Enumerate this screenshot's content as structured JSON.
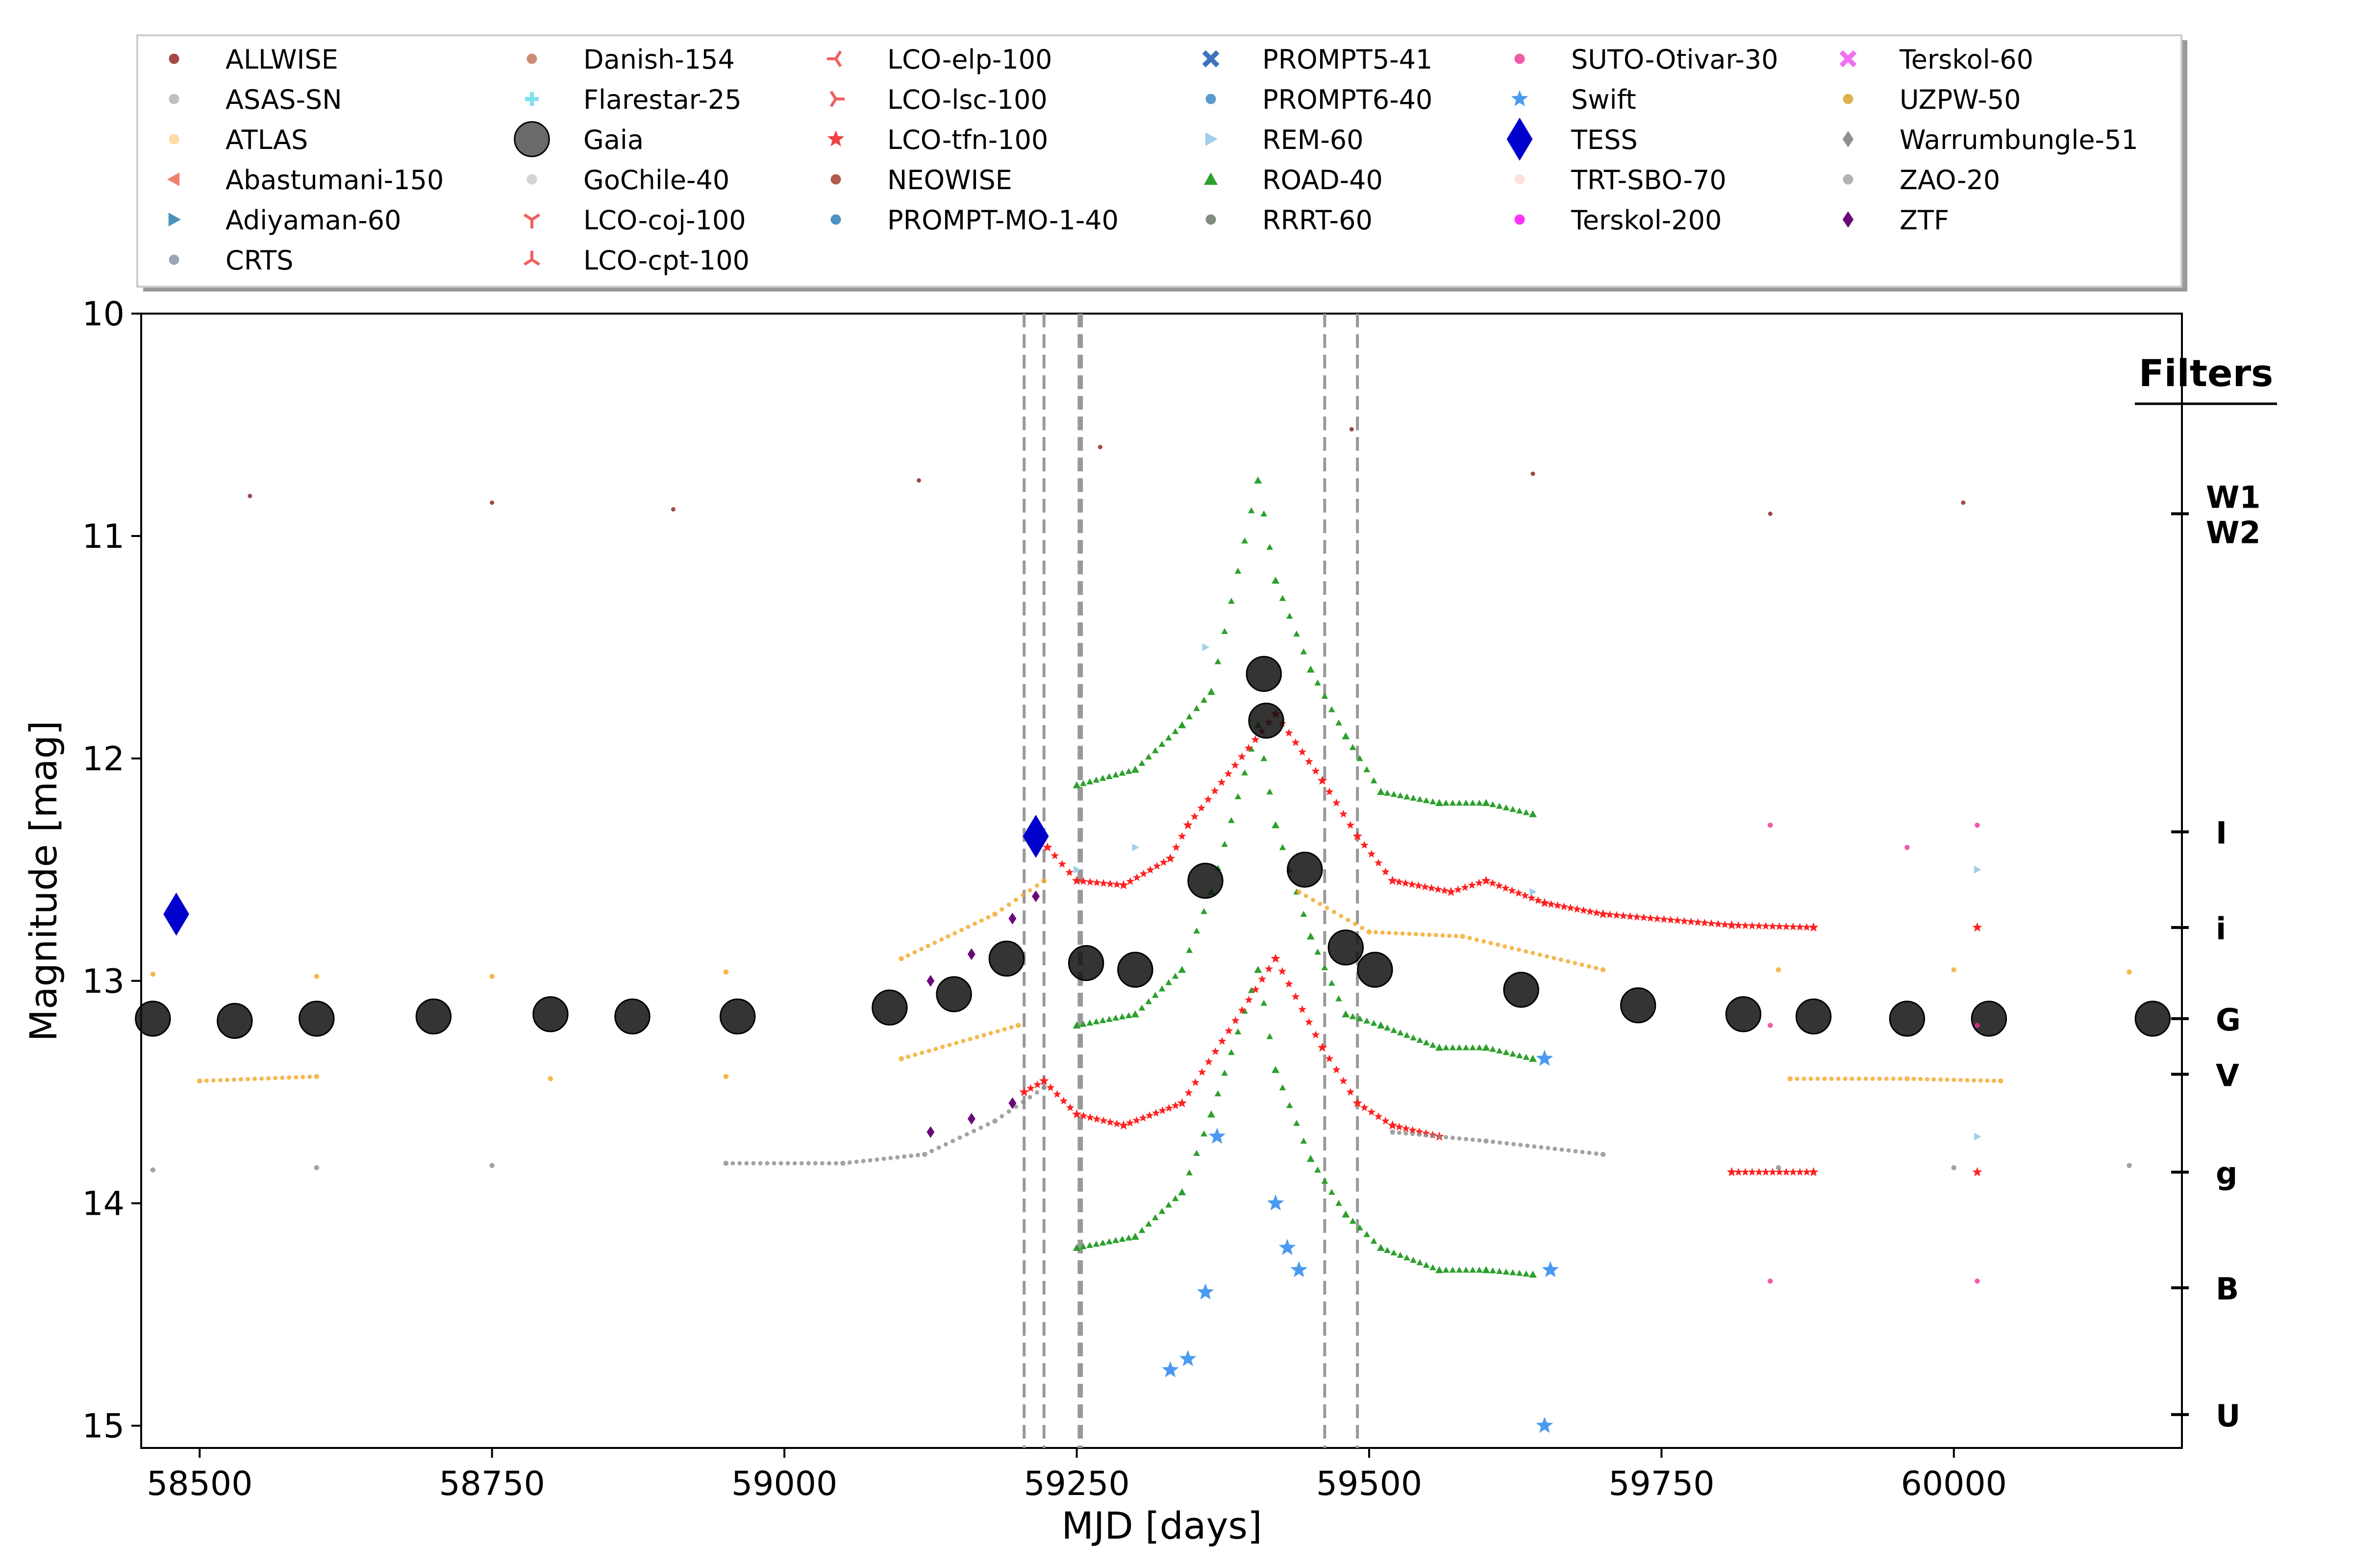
{
  "chart_data": {
    "type": "scatter",
    "title": "",
    "xlabel": "MJD [days]",
    "ylabel": "Magnitude [mag]",
    "xlim": [
      58450,
      60195
    ],
    "ylim": [
      15.1,
      10.0
    ],
    "y_inverted": true,
    "grid": false,
    "legend_position": "top",
    "x_ticks": [
      {
        "v": 58500,
        "label": "58500"
      },
      {
        "v": 58750,
        "label": "58750"
      },
      {
        "v": 59000,
        "label": "59000"
      },
      {
        "v": 59250,
        "label": "59250"
      },
      {
        "v": 59500,
        "label": "59500"
      },
      {
        "v": 59750,
        "label": "59750"
      },
      {
        "v": 60000,
        "label": "60000"
      }
    ],
    "y_ticks": [
      {
        "v": 10,
        "label": "10"
      },
      {
        "v": 11,
        "label": "11"
      },
      {
        "v": 12,
        "label": "12"
      },
      {
        "v": 13,
        "label": "13"
      },
      {
        "v": 14,
        "label": "14"
      },
      {
        "v": 15,
        "label": "15"
      }
    ],
    "vertical_lines": [
      59205,
      59222,
      59252,
      59254,
      59462,
      59490
    ],
    "filters_title": "Filters",
    "filters": [
      {
        "name": "W1",
        "mag": 10.9
      },
      {
        "name": "W2",
        "mag": 10.9
      },
      {
        "name": "I",
        "mag": 12.33
      },
      {
        "name": "i",
        "mag": 12.76
      },
      {
        "name": "G",
        "mag": 13.17
      },
      {
        "name": "V",
        "mag": 13.42
      },
      {
        "name": "g",
        "mag": 13.86
      },
      {
        "name": "B",
        "mag": 14.38
      },
      {
        "name": "U",
        "mag": 14.95
      }
    ],
    "legend": [
      {
        "name": "ALLWISE",
        "color": "#8b1a1a",
        "marker": "circle"
      },
      {
        "name": "ASAS-SN",
        "color": "#b0b0b0",
        "marker": "circle"
      },
      {
        "name": "ATLAS",
        "color": "#ffd090",
        "marker": "circle"
      },
      {
        "name": "Abastumani-150",
        "color": "#f08070",
        "marker": "tri-left"
      },
      {
        "name": "Adiyaman-60",
        "color": "#4a90b8",
        "marker": "tri-right"
      },
      {
        "name": "CRTS",
        "color": "#8090a0",
        "marker": "circle"
      },
      {
        "name": "Danish-154",
        "color": "#c07050",
        "marker": "circle"
      },
      {
        "name": "Flarestar-25",
        "color": "#80e0f0",
        "marker": "plus"
      },
      {
        "name": "Gaia",
        "color": "#505050",
        "marker": "circle-large"
      },
      {
        "name": "GoChile-40",
        "color": "#c8c8c8",
        "marker": "circle"
      },
      {
        "name": "LCO-coj-100",
        "color": "#f06060",
        "marker": "y-down"
      },
      {
        "name": "LCO-cpt-100",
        "color": "#f06060",
        "marker": "y-up"
      },
      {
        "name": "LCO-elp-100",
        "color": "#f06060",
        "marker": "y-left"
      },
      {
        "name": "LCO-lsc-100",
        "color": "#f06060",
        "marker": "y-right"
      },
      {
        "name": "LCO-tfn-100",
        "color": "#f04040",
        "marker": "star"
      },
      {
        "name": "NEOWISE",
        "color": "#a03020",
        "marker": "circle"
      },
      {
        "name": "PROMPT-MO-1-40",
        "color": "#1f77b4",
        "marker": "circle"
      },
      {
        "name": "PROMPT5-41",
        "color": "#4070c0",
        "marker": "x"
      },
      {
        "name": "PROMPT6-40",
        "color": "#3080c0",
        "marker": "circle"
      },
      {
        "name": "REM-60",
        "color": "#a0d0e8",
        "marker": "tri-right"
      },
      {
        "name": "ROAD-40",
        "color": "#2ca02c",
        "marker": "tri-up"
      },
      {
        "name": "RRRT-60",
        "color": "#607060",
        "marker": "circle"
      },
      {
        "name": "SUTO-Otivar-30",
        "color": "#f03090",
        "marker": "circle"
      },
      {
        "name": "Swift",
        "color": "#4a9af0",
        "marker": "star"
      },
      {
        "name": "TESS",
        "color": "#0000cc",
        "marker": "diamond-large"
      },
      {
        "name": "TRT-SBO-70",
        "color": "#ffd8d8",
        "marker": "circle"
      },
      {
        "name": "Terskol-200",
        "color": "#ff00ff",
        "marker": "circle"
      },
      {
        "name": "Terskol-60",
        "color": "#f070f0",
        "marker": "x"
      },
      {
        "name": "UZPW-50",
        "color": "#d4a020",
        "marker": "circle"
      },
      {
        "name": "Warrumbungle-51",
        "color": "#909090",
        "marker": "diamond"
      },
      {
        "name": "ZAO-20",
        "color": "#a0a0a0",
        "marker": "circle"
      },
      {
        "name": "ZTF",
        "color": "#6a0a7a",
        "marker": "diamond"
      }
    ],
    "series": [
      {
        "name": "ALLWISE/NEOWISE (W1,W2)",
        "color": "#8b1a1a",
        "points": [
          [
            58543,
            10.82
          ],
          [
            58750,
            10.85
          ],
          [
            58905,
            10.88
          ],
          [
            59115,
            10.75
          ],
          [
            59270,
            10.6
          ],
          [
            59485,
            10.52
          ],
          [
            59640,
            10.72
          ],
          [
            59843,
            10.9
          ],
          [
            60008,
            10.85
          ]
        ]
      },
      {
        "name": "ROAD-40 (I)",
        "color": "#2ca02c",
        "points": [
          [
            59250,
            12.12
          ],
          [
            59300,
            12.05
          ],
          [
            59340,
            11.85
          ],
          [
            59365,
            11.7
          ],
          [
            59405,
            10.75
          ],
          [
            59420,
            11.2
          ],
          [
            59450,
            11.6
          ],
          [
            59480,
            11.9
          ],
          [
            59510,
            12.15
          ],
          [
            59560,
            12.2
          ],
          [
            59600,
            12.2
          ],
          [
            59640,
            12.25
          ]
        ]
      },
      {
        "name": "ROAD-40 (V)",
        "color": "#2ca02c",
        "points": [
          [
            59250,
            13.2
          ],
          [
            59300,
            13.15
          ],
          [
            59340,
            12.95
          ],
          [
            59365,
            12.6
          ],
          [
            59405,
            11.85
          ],
          [
            59420,
            12.3
          ],
          [
            59450,
            12.8
          ],
          [
            59480,
            13.15
          ],
          [
            59510,
            13.2
          ],
          [
            59560,
            13.3
          ],
          [
            59600,
            13.3
          ],
          [
            59640,
            13.35
          ]
        ]
      },
      {
        "name": "ROAD-40 (B)",
        "color": "#2ca02c",
        "points": [
          [
            59250,
            14.2
          ],
          [
            59300,
            14.15
          ],
          [
            59340,
            13.95
          ],
          [
            59365,
            13.6
          ],
          [
            59405,
            12.95
          ],
          [
            59420,
            13.4
          ],
          [
            59450,
            13.8
          ],
          [
            59480,
            14.05
          ],
          [
            59510,
            14.2
          ],
          [
            59560,
            14.3
          ],
          [
            59600,
            14.3
          ],
          [
            59640,
            14.32
          ]
        ]
      },
      {
        "name": "LCO (i)",
        "color": "#ff2020",
        "points": [
          [
            59225,
            12.4
          ],
          [
            59250,
            12.55
          ],
          [
            59290,
            12.57
          ],
          [
            59330,
            12.45
          ],
          [
            59345,
            12.3
          ],
          [
            59420,
            11.8
          ],
          [
            59460,
            12.1
          ],
          [
            59490,
            12.35
          ],
          [
            59520,
            12.55
          ],
          [
            59570,
            12.6
          ],
          [
            59600,
            12.55
          ],
          [
            59650,
            12.65
          ],
          [
            59700,
            12.7
          ],
          [
            59810,
            12.75
          ],
          [
            59880,
            12.76
          ],
          [
            60020,
            12.76
          ]
        ]
      },
      {
        "name": "LCO (g)",
        "color": "#ff2020",
        "points": [
          [
            59205,
            13.5
          ],
          [
            59222,
            13.45
          ],
          [
            59250,
            13.6
          ],
          [
            59290,
            13.65
          ],
          [
            59340,
            13.55
          ],
          [
            59420,
            12.9
          ],
          [
            59460,
            13.3
          ],
          [
            59490,
            13.55
          ],
          [
            59520,
            13.65
          ],
          [
            59560,
            13.7
          ],
          [
            59810,
            13.86
          ],
          [
            59880,
            13.86
          ],
          [
            60020,
            13.86
          ]
        ]
      },
      {
        "name": "ATLAS (o)",
        "color": "#f5a623",
        "points": [
          [
            58460,
            12.97
          ],
          [
            58600,
            12.98
          ],
          [
            58750,
            12.98
          ],
          [
            58950,
            12.96
          ],
          [
            59100,
            12.9
          ],
          [
            59180,
            12.7
          ],
          [
            59222,
            12.55
          ],
          [
            59440,
            12.6
          ],
          [
            59500,
            12.78
          ],
          [
            59580,
            12.8
          ],
          [
            59700,
            12.95
          ],
          [
            59850,
            12.95
          ],
          [
            60000,
            12.95
          ],
          [
            60150,
            12.96
          ]
        ]
      },
      {
        "name": "ATLAS (c)",
        "color": "#f5a623",
        "points": [
          [
            58500,
            13.45
          ],
          [
            58600,
            13.43
          ],
          [
            58800,
            13.44
          ],
          [
            58950,
            13.43
          ],
          [
            59100,
            13.35
          ],
          [
            59200,
            13.2
          ],
          [
            59860,
            13.44
          ],
          [
            59960,
            13.44
          ],
          [
            60040,
            13.45
          ]
        ]
      },
      {
        "name": "ASAS-SN (g)",
        "color": "#8c8c8c",
        "points": [
          [
            58460,
            13.85
          ],
          [
            58600,
            13.84
          ],
          [
            58750,
            13.83
          ],
          [
            58950,
            13.82
          ],
          [
            59050,
            13.82
          ],
          [
            59120,
            13.78
          ],
          [
            59180,
            13.63
          ],
          [
            59222,
            13.48
          ],
          [
            59520,
            13.68
          ],
          [
            59600,
            13.72
          ],
          [
            59700,
            13.78
          ],
          [
            59850,
            13.84
          ],
          [
            60000,
            13.84
          ],
          [
            60150,
            13.83
          ]
        ]
      },
      {
        "name": "Gaia (G)",
        "color": "#111111",
        "points": [
          [
            58460,
            13.17
          ],
          [
            58530,
            13.18
          ],
          [
            58600,
            13.17
          ],
          [
            58700,
            13.16
          ],
          [
            58800,
            13.15
          ],
          [
            58870,
            13.16
          ],
          [
            58960,
            13.16
          ],
          [
            59090,
            13.12
          ],
          [
            59145,
            13.06
          ],
          [
            59190,
            12.9
          ],
          [
            59258,
            12.92
          ],
          [
            59300,
            12.95
          ],
          [
            59360,
            12.55
          ],
          [
            59410,
            11.62
          ],
          [
            59412,
            11.83
          ],
          [
            59445,
            12.5
          ],
          [
            59480,
            12.85
          ],
          [
            59505,
            12.95
          ],
          [
            59630,
            13.04
          ],
          [
            59730,
            13.11
          ],
          [
            59820,
            13.15
          ],
          [
            59880,
            13.16
          ],
          [
            59960,
            13.17
          ],
          [
            60030,
            13.17
          ],
          [
            60170,
            13.17
          ]
        ]
      },
      {
        "name": "TESS",
        "color": "#0000cc",
        "points": [
          [
            58480,
            12.7
          ],
          [
            59215,
            12.35
          ]
        ]
      },
      {
        "name": "Swift",
        "color": "#4a9af0",
        "points": [
          [
            59330,
            14.75
          ],
          [
            59345,
            14.7
          ],
          [
            59360,
            14.4
          ],
          [
            59370,
            13.7
          ],
          [
            59420,
            14.0
          ],
          [
            59430,
            14.2
          ],
          [
            59440,
            14.3
          ],
          [
            59650,
            13.35
          ],
          [
            59655,
            14.3
          ],
          [
            59650,
            15.0
          ]
        ]
      },
      {
        "name": "ZTF",
        "color": "#6a0a7a",
        "points": [
          [
            59125,
            13.0
          ],
          [
            59160,
            12.88
          ],
          [
            59195,
            12.72
          ],
          [
            59215,
            12.62
          ],
          [
            59125,
            13.68
          ],
          [
            59160,
            13.62
          ],
          [
            59195,
            13.55
          ]
        ]
      },
      {
        "name": "SUTO-Otivar-30",
        "color": "#f03090",
        "points": [
          [
            59843,
            12.3
          ],
          [
            59960,
            12.4
          ],
          [
            60020,
            12.3
          ],
          [
            59843,
            13.2
          ],
          [
            60020,
            13.2
          ],
          [
            59843,
            14.35
          ],
          [
            60020,
            14.35
          ]
        ]
      },
      {
        "name": "REM-60",
        "color": "#a0d0e8",
        "points": [
          [
            59250,
            12.5
          ],
          [
            59300,
            12.4
          ],
          [
            59360,
            11.5
          ],
          [
            59640,
            12.6
          ],
          [
            60020,
            12.5
          ],
          [
            60020,
            13.7
          ]
        ]
      }
    ]
  }
}
